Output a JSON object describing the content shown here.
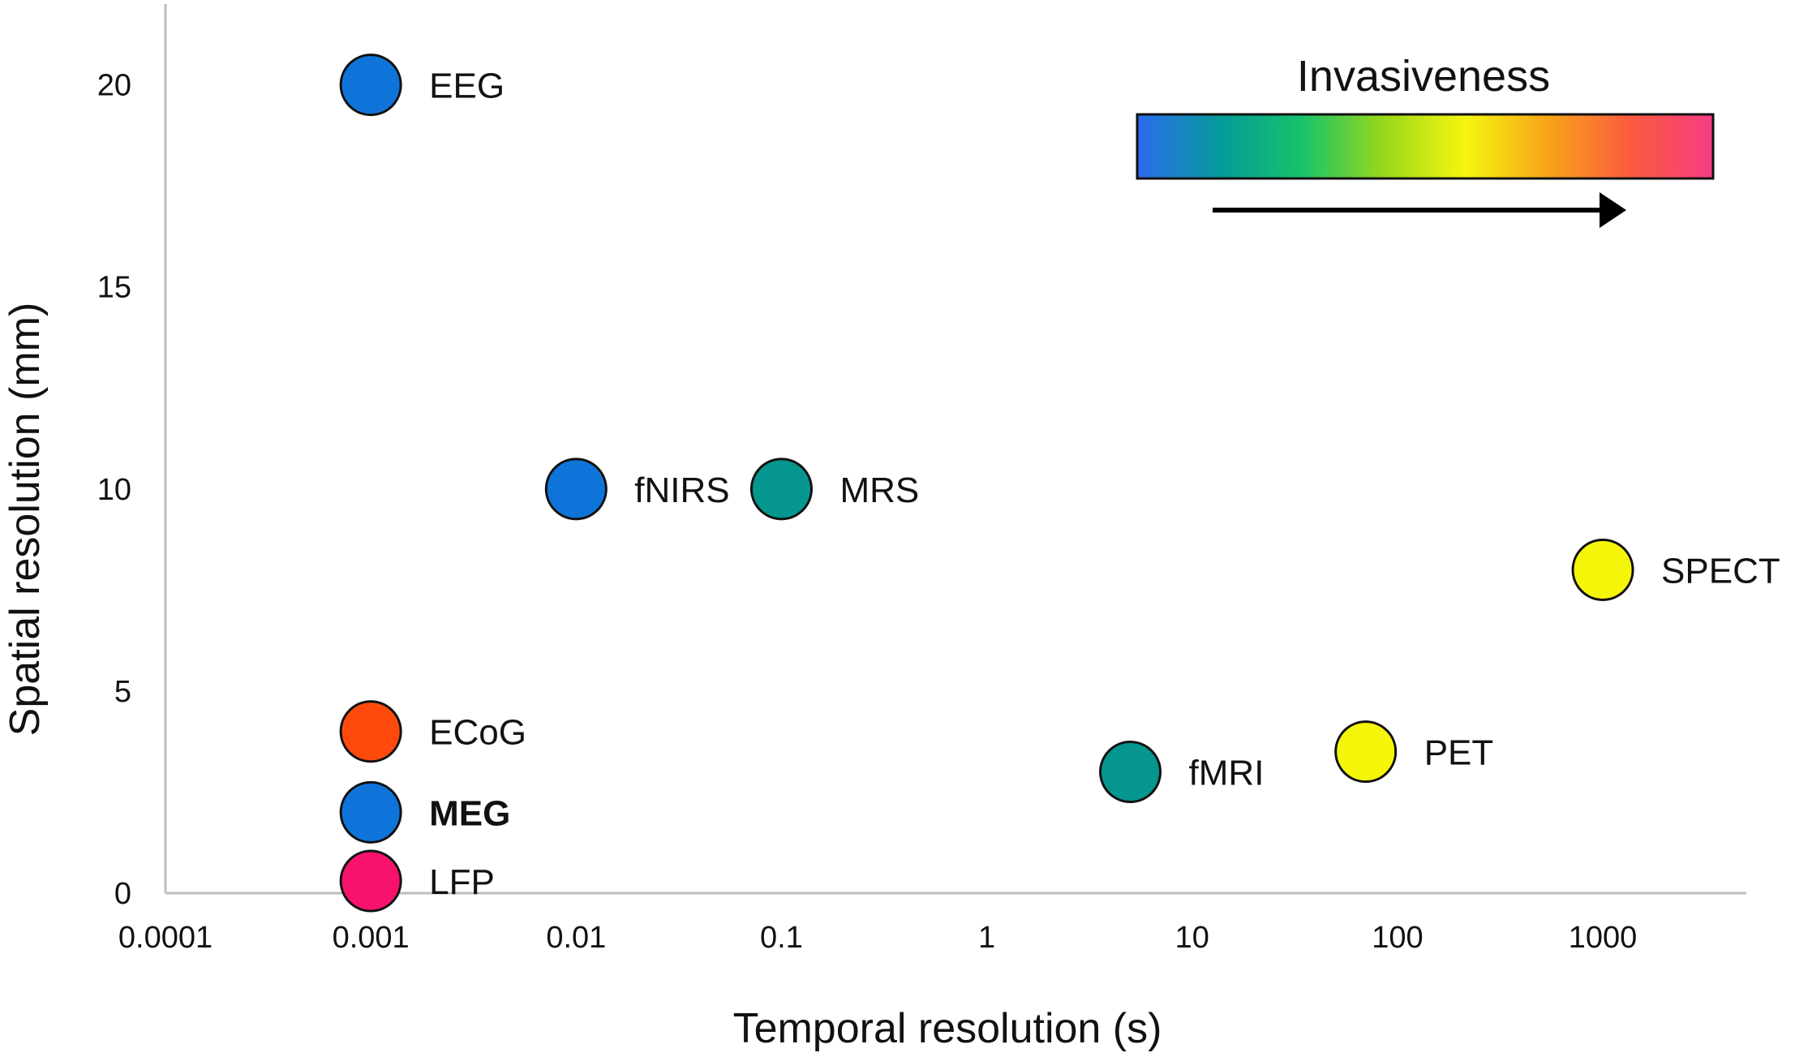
{
  "chart_data": {
    "type": "scatter",
    "xscale": "log",
    "xlim": [
      0.0001,
      5000
    ],
    "ylim": [
      0,
      22
    ],
    "xlabel": "Temporal resolution (s)",
    "ylabel": "Spatial resolution (mm)",
    "x_ticks": [
      {
        "value": 0.0001,
        "label": "0.0001"
      },
      {
        "value": 0.001,
        "label": "0.001"
      },
      {
        "value": 0.01,
        "label": "0.01"
      },
      {
        "value": 0.1,
        "label": "0.1"
      },
      {
        "value": 1,
        "label": "1"
      },
      {
        "value": 10,
        "label": "10"
      },
      {
        "value": 100,
        "label": "100"
      },
      {
        "value": 1000,
        "label": "1000"
      }
    ],
    "y_ticks": [
      {
        "value": 0,
        "label": "0"
      },
      {
        "value": 5,
        "label": "5"
      },
      {
        "value": 10,
        "label": "10"
      },
      {
        "value": 15,
        "label": "15"
      },
      {
        "value": 20,
        "label": "20"
      }
    ],
    "grid": false,
    "points": [
      {
        "label": "EEG",
        "x": 0.001,
        "y": 20,
        "color": "#0f74d9",
        "bold": false
      },
      {
        "label": "fNIRS",
        "x": 0.01,
        "y": 10,
        "color": "#0f74d9",
        "bold": false
      },
      {
        "label": "MRS",
        "x": 0.1,
        "y": 10,
        "color": "#05968f",
        "bold": false
      },
      {
        "label": "SPECT",
        "x": 1000,
        "y": 8,
        "color": "#f5f50a",
        "bold": false
      },
      {
        "label": "ECoG",
        "x": 0.001,
        "y": 4,
        "color": "#ff4a0d",
        "bold": false
      },
      {
        "label": "PET",
        "x": 70,
        "y": 3.5,
        "color": "#f5f50a",
        "bold": false
      },
      {
        "label": "fMRI",
        "x": 5,
        "y": 3,
        "color": "#05968f",
        "bold": false
      },
      {
        "label": "MEG",
        "x": 0.001,
        "y": 2,
        "color": "#0f74d9",
        "bold": true
      },
      {
        "label": "LFP",
        "x": 0.001,
        "y": 0.3,
        "color": "#f7126e",
        "bold": false
      }
    ],
    "legend": {
      "title": "Invasiveness",
      "placement": "top-right",
      "gradient_colors": [
        "#2d6bf0",
        "#059a9a",
        "#16c36a",
        "#9ad81a",
        "#f6f60f",
        "#f8a31a",
        "#fb5a3d",
        "#f53d85"
      ]
    }
  }
}
